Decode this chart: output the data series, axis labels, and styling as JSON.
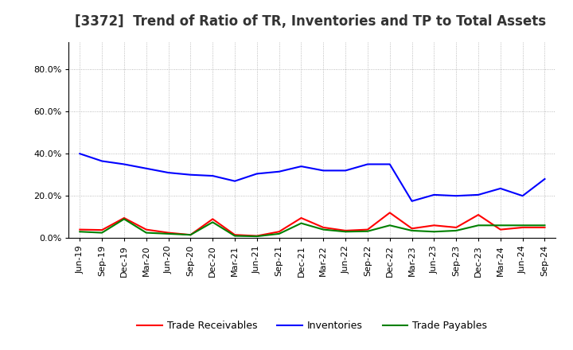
{
  "title": "[3372]  Trend of Ratio of TR, Inventories and TP to Total Assets",
  "x_labels": [
    "Jun-19",
    "Sep-19",
    "Dec-19",
    "Mar-20",
    "Jun-20",
    "Sep-20",
    "Dec-20",
    "Mar-21",
    "Jun-21",
    "Sep-21",
    "Dec-21",
    "Mar-22",
    "Jun-22",
    "Sep-22",
    "Dec-22",
    "Mar-23",
    "Jun-23",
    "Sep-23",
    "Dec-23",
    "Mar-24",
    "Jun-24",
    "Sep-24"
  ],
  "trade_receivables": [
    0.04,
    0.038,
    0.095,
    0.04,
    0.025,
    0.015,
    0.09,
    0.015,
    0.01,
    0.03,
    0.095,
    0.05,
    0.035,
    0.04,
    0.12,
    0.045,
    0.06,
    0.05,
    0.11,
    0.04,
    0.05,
    0.05
  ],
  "inventories": [
    0.4,
    0.365,
    0.35,
    0.33,
    0.31,
    0.3,
    0.295,
    0.27,
    0.305,
    0.315,
    0.34,
    0.32,
    0.32,
    0.35,
    0.35,
    0.175,
    0.205,
    0.2,
    0.205,
    0.235,
    0.2,
    0.28
  ],
  "trade_payables": [
    0.03,
    0.025,
    0.09,
    0.025,
    0.02,
    0.015,
    0.075,
    0.01,
    0.008,
    0.02,
    0.07,
    0.04,
    0.03,
    0.032,
    0.06,
    0.035,
    0.03,
    0.035,
    0.06,
    0.06,
    0.06,
    0.06
  ],
  "tr_color": "#ff0000",
  "inv_color": "#0000ff",
  "tp_color": "#008000",
  "ylim": [
    0.0,
    0.93
  ],
  "yticks": [
    0.0,
    0.2,
    0.4,
    0.6,
    0.8
  ],
  "ytick_labels": [
    "0.0%",
    "20.0%",
    "40.0%",
    "60.0%",
    "80.0%"
  ],
  "legend_labels": [
    "Trade Receivables",
    "Inventories",
    "Trade Payables"
  ],
  "background_color": "#ffffff",
  "grid_color": "#aaaaaa",
  "title_fontsize": 12,
  "tick_fontsize": 8,
  "legend_fontsize": 9
}
